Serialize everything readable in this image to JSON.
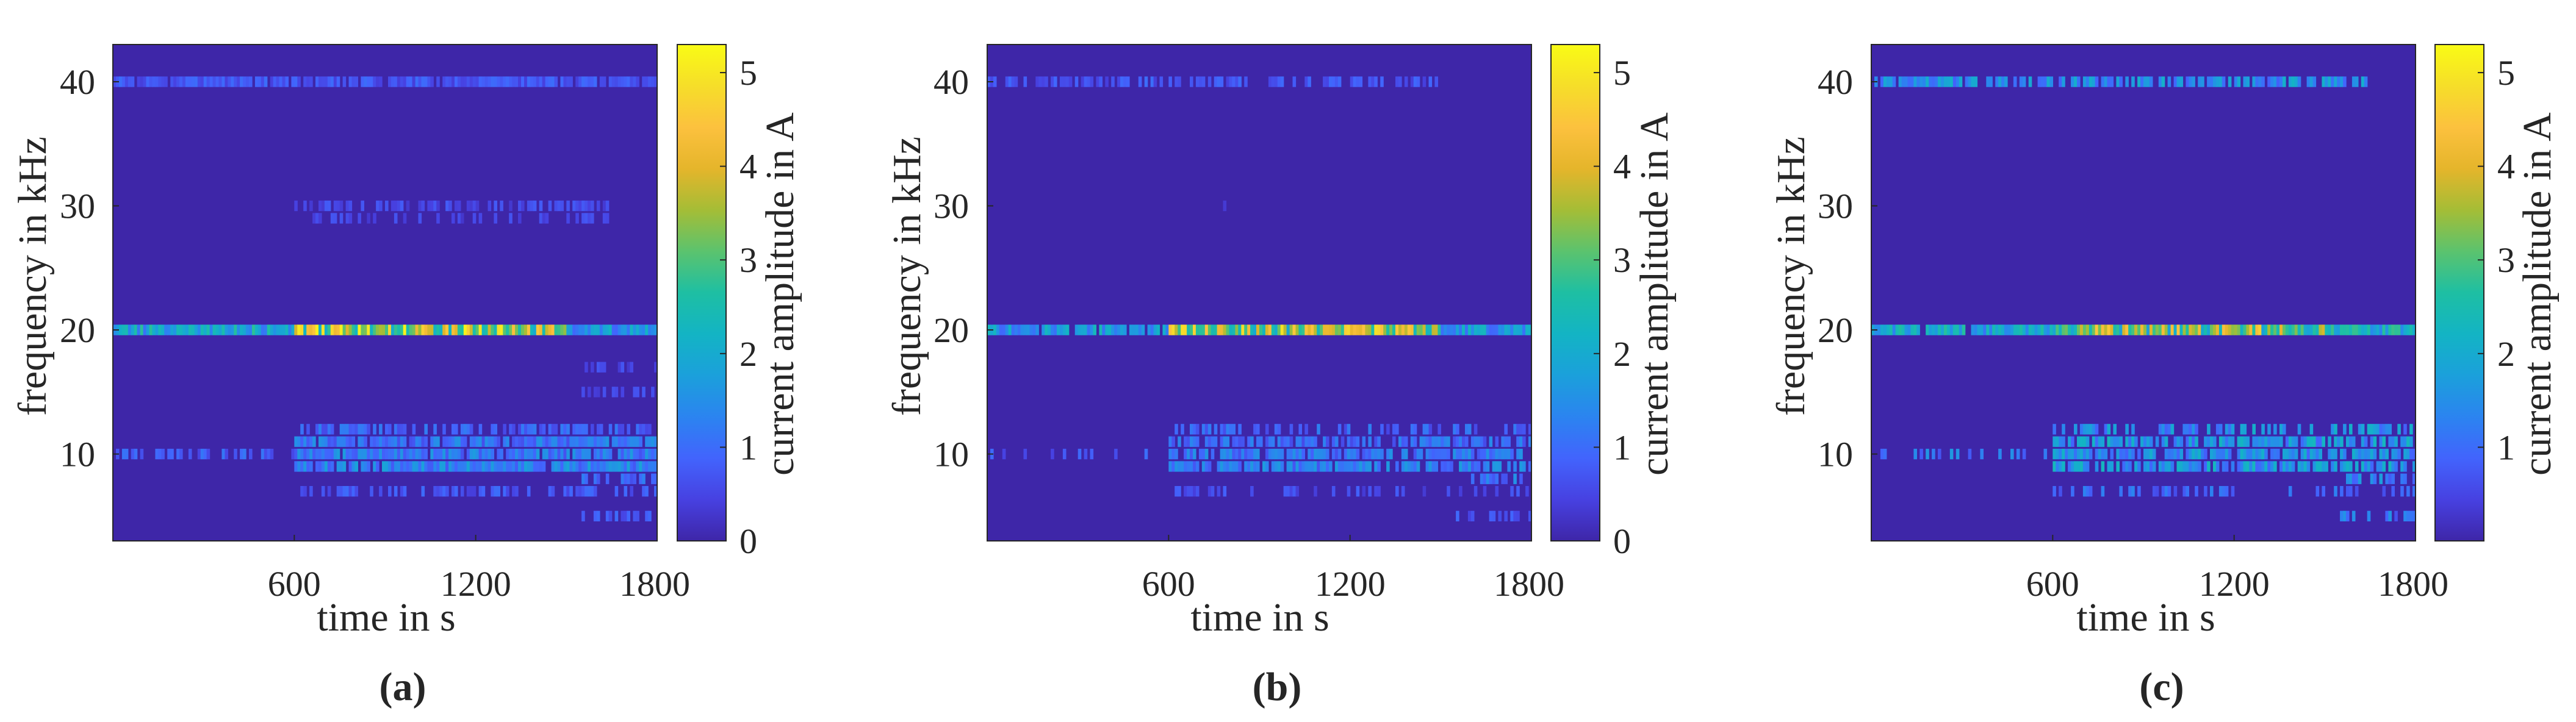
{
  "figure": {
    "colorscale": [
      "#3e26a8",
      "#4741e1",
      "#4264fd",
      "#2b84f0",
      "#1ba0db",
      "#13b4c4",
      "#1ebfa3",
      "#5bc36e",
      "#a5bd36",
      "#e5b52b",
      "#fcc13e",
      "#f6de29",
      "#f9fb15"
    ],
    "background_color": "#3e26a8"
  },
  "chart_data": [
    {
      "type": "heatmap",
      "caption": "(a)",
      "xlabel": "time in s",
      "ylabel": "frequency in kHz",
      "colorbar_label": "current amplitude in A",
      "xlim": [
        0,
        1800
      ],
      "ylim": [
        3,
        43
      ],
      "xticks": [
        "600",
        "1200",
        "1800"
      ],
      "yticks": [
        "10",
        "20",
        "30",
        "40"
      ],
      "colorbar_range": [
        0,
        5.3
      ],
      "colorbar_ticks": [
        "0",
        "1",
        "2",
        "3",
        "4",
        "5"
      ],
      "bands": [
        {
          "freq_khz": 40,
          "level": 0.7,
          "density": 0.9,
          "start_s": 0,
          "end_s": 1800
        },
        {
          "freq_khz": 30,
          "level": 0.55,
          "density": 0.45,
          "start_s": 600,
          "end_s": 1650
        },
        {
          "freq_khz": 29,
          "level": 0.5,
          "density": 0.35,
          "start_s": 600,
          "end_s": 1650
        },
        {
          "freq_khz": 20,
          "level": 1.9,
          "density": 1.0,
          "start_s": 0,
          "end_s": 600
        },
        {
          "freq_khz": 20,
          "level": 3.6,
          "density": 1.0,
          "start_s": 600,
          "end_s": 1500
        },
        {
          "freq_khz": 20,
          "level": 1.6,
          "density": 1.0,
          "start_s": 1500,
          "end_s": 1800
        },
        {
          "freq_khz": 17,
          "level": 0.5,
          "density": 0.5,
          "start_s": 1550,
          "end_s": 1800
        },
        {
          "freq_khz": 15,
          "level": 0.5,
          "density": 0.5,
          "start_s": 1550,
          "end_s": 1800
        },
        {
          "freq_khz": 12,
          "level": 0.9,
          "density": 0.6,
          "start_s": 600,
          "end_s": 1800
        },
        {
          "freq_khz": 11,
          "level": 1.1,
          "density": 0.9,
          "start_s": 600,
          "end_s": 1800
        },
        {
          "freq_khz": 10,
          "level": 0.8,
          "density": 0.55,
          "start_s": 0,
          "end_s": 600
        },
        {
          "freq_khz": 10,
          "level": 1.2,
          "density": 0.9,
          "start_s": 600,
          "end_s": 1800
        },
        {
          "freq_khz": 9,
          "level": 1.3,
          "density": 0.9,
          "start_s": 600,
          "end_s": 1800
        },
        {
          "freq_khz": 8,
          "level": 0.9,
          "density": 0.6,
          "start_s": 1550,
          "end_s": 1800
        },
        {
          "freq_khz": 7,
          "level": 0.7,
          "density": 0.5,
          "start_s": 600,
          "end_s": 1800
        },
        {
          "freq_khz": 5,
          "level": 0.7,
          "density": 0.5,
          "start_s": 1550,
          "end_s": 1800
        }
      ]
    },
    {
      "type": "heatmap",
      "caption": "(b)",
      "xlabel": "time in s",
      "ylabel": "frequency in kHz",
      "colorbar_label": "current amplitude in A",
      "xlim": [
        0,
        1800
      ],
      "ylim": [
        3,
        43
      ],
      "xticks": [
        "600",
        "1200",
        "1800"
      ],
      "yticks": [
        "10",
        "20",
        "30",
        "40"
      ],
      "colorbar_range": [
        0,
        5.3
      ],
      "colorbar_ticks": [
        "0",
        "1",
        "2",
        "3",
        "4",
        "5"
      ],
      "bands": [
        {
          "freq_khz": 40,
          "level": 0.7,
          "density": 0.6,
          "start_s": 0,
          "end_s": 1500
        },
        {
          "freq_khz": 30,
          "level": 0.5,
          "density": 0.04,
          "start_s": 600,
          "end_s": 1000
        },
        {
          "freq_khz": 20,
          "level": 1.7,
          "density": 0.85,
          "start_s": 0,
          "end_s": 600
        },
        {
          "freq_khz": 20,
          "level": 3.4,
          "density": 1.0,
          "start_s": 600,
          "end_s": 1500
        },
        {
          "freq_khz": 20,
          "level": 1.6,
          "density": 1.0,
          "start_s": 1500,
          "end_s": 1800
        },
        {
          "freq_khz": 12,
          "level": 0.9,
          "density": 0.5,
          "start_s": 600,
          "end_s": 1800
        },
        {
          "freq_khz": 11,
          "level": 1.0,
          "density": 0.7,
          "start_s": 600,
          "end_s": 1800
        },
        {
          "freq_khz": 10,
          "level": 0.8,
          "density": 0.2,
          "start_s": 0,
          "end_s": 600
        },
        {
          "freq_khz": 10,
          "level": 1.1,
          "density": 0.8,
          "start_s": 600,
          "end_s": 1800
        },
        {
          "freq_khz": 9,
          "level": 1.2,
          "density": 0.8,
          "start_s": 600,
          "end_s": 1800
        },
        {
          "freq_khz": 8,
          "level": 1.1,
          "density": 0.55,
          "start_s": 1550,
          "end_s": 1800
        },
        {
          "freq_khz": 7,
          "level": 0.6,
          "density": 0.3,
          "start_s": 600,
          "end_s": 1800
        },
        {
          "freq_khz": 5,
          "level": 0.7,
          "density": 0.5,
          "start_s": 1550,
          "end_s": 1800
        }
      ]
    },
    {
      "type": "heatmap",
      "caption": "(c)",
      "xlabel": "time in s",
      "ylabel": "frequency in kHz",
      "colorbar_label": "current amplitude in A",
      "xlim": [
        0,
        1800
      ],
      "ylim": [
        3,
        43
      ],
      "xticks": [
        "600",
        "1200",
        "1800"
      ],
      "yticks": [
        "10",
        "20",
        "30",
        "40"
      ],
      "colorbar_range": [
        0,
        5.3
      ],
      "colorbar_ticks": [
        "1",
        "2",
        "3",
        "4",
        "5"
      ],
      "bands": [
        {
          "freq_khz": 40,
          "level": 1.5,
          "density": 0.75,
          "start_s": 0,
          "end_s": 1650
        },
        {
          "freq_khz": 30,
          "level": 1.2,
          "density": 0.04,
          "start_s": 600,
          "end_s": 1050
        },
        {
          "freq_khz": 20,
          "level": 1.9,
          "density": 0.85,
          "start_s": 0,
          "end_s": 600
        },
        {
          "freq_khz": 20,
          "level": 3.2,
          "density": 1.0,
          "start_s": 600,
          "end_s": 1500
        },
        {
          "freq_khz": 20,
          "level": 2.0,
          "density": 1.0,
          "start_s": 1500,
          "end_s": 1800
        },
        {
          "freq_khz": 12,
          "level": 1.5,
          "density": 0.5,
          "start_s": 600,
          "end_s": 1800
        },
        {
          "freq_khz": 11,
          "level": 1.6,
          "density": 0.75,
          "start_s": 600,
          "end_s": 1800
        },
        {
          "freq_khz": 10,
          "level": 1.2,
          "density": 0.25,
          "start_s": 0,
          "end_s": 600
        },
        {
          "freq_khz": 10,
          "level": 1.5,
          "density": 0.75,
          "start_s": 600,
          "end_s": 1800
        },
        {
          "freq_khz": 9,
          "level": 1.6,
          "density": 0.75,
          "start_s": 600,
          "end_s": 1800
        },
        {
          "freq_khz": 8,
          "level": 1.4,
          "density": 0.5,
          "start_s": 1550,
          "end_s": 1800
        },
        {
          "freq_khz": 7,
          "level": 1.0,
          "density": 0.3,
          "start_s": 600,
          "end_s": 1800
        },
        {
          "freq_khz": 5,
          "level": 1.1,
          "density": 0.5,
          "start_s": 1550,
          "end_s": 1800
        }
      ]
    }
  ]
}
